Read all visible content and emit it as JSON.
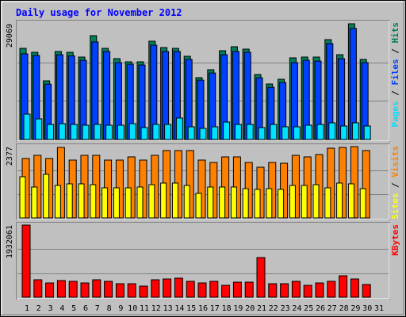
{
  "title": "Daily usage for November 2012",
  "legend_separator": " / ",
  "chart_data": [
    {
      "type": "bar",
      "ylim": [
        0,
        29069
      ],
      "yticks": [
        29069
      ],
      "series": [
        {
          "name": "Hits",
          "color": "#00805c",
          "values": [
            22897,
            21901,
            14733,
            22100,
            21901,
            20706,
            26082,
            22897,
            20308,
            19512,
            19512,
            24688,
            23096,
            22897,
            20906,
            15530,
            17521,
            22299,
            23295,
            22697,
            16326,
            13937,
            15132,
            20507,
            20706,
            20706,
            25087,
            21304,
            29069,
            20109,
            null
          ]
        },
        {
          "name": "Files",
          "color": "#0040ff",
          "values": [
            21500,
            21100,
            13900,
            21300,
            21000,
            19900,
            24500,
            22100,
            19300,
            18900,
            18700,
            23700,
            22100,
            22100,
            20100,
            14900,
            16700,
            21300,
            22100,
            21900,
            15500,
            13100,
            14300,
            19300,
            19900,
            19700,
            24100,
            20300,
            27900,
            19300,
            null
          ]
        },
        {
          "name": "Pages",
          "color": "#00e0ff",
          "values": [
            6371,
            5177,
            3783,
            3982,
            3783,
            3584,
            3783,
            3584,
            3584,
            3982,
            2987,
            3783,
            3783,
            5376,
            3186,
            2787,
            3186,
            4380,
            3783,
            3783,
            2987,
            3783,
            3186,
            3186,
            3584,
            3783,
            4181,
            3385,
            4181,
            3385,
            null
          ]
        }
      ]
    },
    {
      "type": "bar",
      "ylim": [
        0,
        2377
      ],
      "yticks": [
        2377
      ],
      "series": [
        {
          "name": "Visits",
          "color": "#ff8000",
          "values": [
            1981,
            2086,
            1981,
            2350,
            1928,
            2086,
            2086,
            1928,
            1928,
            2034,
            1928,
            2086,
            2245,
            2245,
            2245,
            1928,
            1849,
            2034,
            2034,
            1849,
            1690,
            1849,
            1822,
            2086,
            2034,
            2113,
            2324,
            2350,
            2377,
            2245,
            null
          ]
        },
        {
          "name": "Sites",
          "color": "#ffff00",
          "values": [
            1373,
            1030,
            1453,
            1083,
            1136,
            1136,
            1109,
            1004,
            1004,
            1004,
            1030,
            1109,
            1162,
            1162,
            1083,
            819,
            1030,
            1030,
            1030,
            977,
            951,
            977,
            951,
            1083,
            1083,
            1109,
            1004,
            1162,
            1136,
            977,
            null
          ]
        }
      ]
    },
    {
      "type": "bar",
      "ylim": [
        0,
        1932061
      ],
      "yticks": [
        1932061
      ],
      "categories": [
        "1",
        "2",
        "3",
        "4",
        "5",
        "6",
        "7",
        "8",
        "9",
        "10",
        "11",
        "12",
        "13",
        "14",
        "15",
        "16",
        "17",
        "18",
        "19",
        "20",
        "21",
        "22",
        "23",
        "24",
        "25",
        "26",
        "27",
        "28",
        "29",
        "30",
        "31"
      ],
      "category_colors": [
        "#000000",
        "#000000",
        "#008050",
        "#008050",
        "#000000",
        "#000000",
        "#000000",
        "#000000",
        "#000000",
        "#008050",
        "#008050",
        "#000000",
        "#000000",
        "#000000",
        "#000000",
        "#000000",
        "#008050",
        "#008050",
        "#000000",
        "#000000",
        "#000000",
        "#000000",
        "#000000",
        "#008050",
        "#008050",
        "#000000",
        "#000000",
        "#000000",
        "#000000",
        "#000000",
        "#008050"
      ],
      "series": [
        {
          "name": "KBytes",
          "color": "#ff0000",
          "values": [
            1932061,
            467000,
            382000,
            446000,
            425000,
            382000,
            467000,
            425000,
            361000,
            361000,
            297000,
            467000,
            488000,
            510000,
            425000,
            382000,
            425000,
            318000,
            403000,
            403000,
            1062000,
            361000,
            361000,
            425000,
            318000,
            382000,
            425000,
            573000,
            488000,
            340000,
            null
          ]
        }
      ]
    }
  ]
}
